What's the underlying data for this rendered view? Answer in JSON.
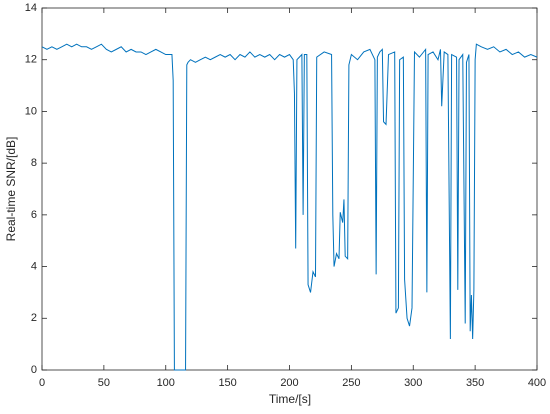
{
  "chart_data": {
    "type": "line",
    "xlabel": "Time/[s]",
    "ylabel": "Real-time SNR/[dB]",
    "x": [
      0,
      4,
      8,
      12,
      16,
      20,
      24,
      28,
      32,
      36,
      40,
      44,
      48,
      52,
      56,
      60,
      64,
      68,
      72,
      76,
      80,
      84,
      88,
      92,
      96,
      100,
      105,
      106,
      107,
      116,
      117,
      118,
      120,
      124,
      128,
      132,
      136,
      140,
      144,
      148,
      152,
      156,
      160,
      164,
      168,
      172,
      176,
      180,
      184,
      188,
      192,
      196,
      200,
      203,
      204,
      205,
      206,
      208,
      210,
      211,
      212,
      214,
      215,
      217,
      219,
      221,
      222,
      228,
      234,
      235,
      236,
      238,
      240,
      241,
      243,
      244,
      245,
      247,
      248,
      250,
      255,
      260,
      265,
      269,
      270,
      271,
      273,
      275,
      276,
      278,
      280,
      285,
      286,
      288,
      289,
      292,
      293,
      295,
      297,
      299,
      301,
      305,
      310,
      311,
      312,
      316,
      320,
      322,
      323,
      325,
      328,
      330,
      331,
      335,
      336,
      337,
      340,
      342,
      343,
      345,
      346,
      347,
      348,
      349,
      350,
      351,
      355,
      360,
      365,
      370,
      375,
      380,
      385,
      390,
      395,
      400
    ],
    "series": [
      {
        "color": "#0072bd",
        "values": [
          12.5,
          12.4,
          12.5,
          12.4,
          12.5,
          12.6,
          12.5,
          12.6,
          12.5,
          12.5,
          12.4,
          12.5,
          12.6,
          12.4,
          12.3,
          12.4,
          12.5,
          12.3,
          12.4,
          12.3,
          12.3,
          12.2,
          12.3,
          12.4,
          12.3,
          12.2,
          12.2,
          11.2,
          0,
          0,
          11.8,
          11.9,
          12.0,
          11.9,
          12.0,
          12.1,
          12.0,
          12.1,
          12.2,
          12.1,
          12.2,
          12.0,
          12.2,
          12.1,
          12.3,
          12.1,
          12.2,
          12.1,
          12.2,
          12.0,
          12.2,
          12.1,
          12.2,
          12.0,
          10.7,
          4.7,
          12.0,
          12.1,
          12.2,
          6.0,
          12.2,
          12.2,
          3.3,
          3.0,
          3.8,
          3.6,
          12.1,
          12.3,
          12.2,
          6.0,
          4.0,
          4.5,
          4.3,
          6.1,
          5.7,
          6.6,
          4.4,
          4.3,
          11.8,
          12.2,
          12.0,
          12.3,
          12.4,
          12.0,
          3.7,
          12.1,
          12.3,
          12.4,
          9.6,
          9.5,
          12.2,
          12.3,
          2.2,
          2.4,
          12.0,
          12.1,
          3.5,
          2.0,
          1.7,
          2.4,
          12.3,
          12.1,
          12.4,
          3.0,
          12.2,
          12.3,
          12.0,
          12.4,
          10.2,
          12.3,
          12.2,
          1.2,
          12.2,
          12.1,
          3.1,
          12.0,
          12.2,
          1.8,
          11.9,
          12.2,
          1.5,
          2.9,
          1.2,
          3.1,
          12.0,
          12.6,
          12.5,
          12.4,
          12.5,
          12.3,
          12.4,
          12.2,
          12.3,
          12.1,
          12.2,
          12.1
        ]
      }
    ],
    "xlim": [
      0,
      400
    ],
    "xticks": [
      0,
      50,
      100,
      150,
      200,
      250,
      300,
      350,
      400
    ],
    "ylim": [
      0,
      14
    ],
    "yticks": [
      0,
      2,
      4,
      6,
      8,
      10,
      12,
      14
    ],
    "grid": false
  }
}
